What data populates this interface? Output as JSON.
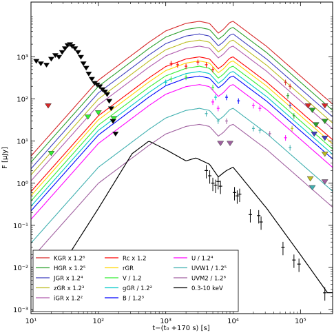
{
  "chart_data": {
    "type": "line",
    "title": "",
    "xlabel": "t−(t₀ +170 s) [s]",
    "ylabel": "F [μJy]",
    "xscale": "log",
    "yscale": "log",
    "xlim": [
      10,
      300000
    ],
    "ylim": [
      0.0008,
      20000
    ],
    "xticks": [
      {
        "v": 10,
        "label": "10¹"
      },
      {
        "v": 100,
        "label": "10²"
      },
      {
        "v": 1000,
        "label": "10³"
      },
      {
        "v": 10000,
        "label": "10⁴"
      },
      {
        "v": 100000,
        "label": "10⁵"
      }
    ],
    "yticks": [
      {
        "v": 0.001,
        "label": "10⁻³"
      },
      {
        "v": 0.01,
        "label": "10⁻²"
      },
      {
        "v": 0.1,
        "label": "10⁻¹"
      },
      {
        "v": 1,
        "label": "10⁰"
      },
      {
        "v": 10,
        "label": "10¹"
      },
      {
        "v": 100,
        "label": "10²"
      },
      {
        "v": 1000,
        "label": "10³"
      }
    ],
    "grid": false,
    "legend_position": "bottom-left",
    "series": [
      {
        "name": "KGR x 1.2⁶",
        "color": "#d62728",
        "peak": 7000
      },
      {
        "name": "HGR x 1.2⁵",
        "color": "#2ca02c",
        "peak": 5000
      },
      {
        "name": "JGR x 1.2⁴",
        "color": "#3f3fbf",
        "peak": 3500
      },
      {
        "name": "zGR x 1.2³",
        "color": "#bcbd22",
        "peak": 2500
      },
      {
        "name": "iGR x 1.2²",
        "color": "#b05cae",
        "peak": 1800
      },
      {
        "name": "Rc x 1.2",
        "color": "#ff0000",
        "peak": 1000
      },
      {
        "name": "rGR",
        "color": "#ffd700",
        "peak": 800
      },
      {
        "name": "V / 1.2",
        "color": "#33ee33",
        "peak": 600
      },
      {
        "name": "gGR / 1.2²",
        "color": "#00c8c8",
        "peak": 450
      },
      {
        "name": "B / 1.2³",
        "color": "#0000ff",
        "peak": 350
      },
      {
        "name": "U / 1.2⁴",
        "color": "#ff00ff",
        "peak": 220
      },
      {
        "name": "UVW1 / 1.2⁵",
        "color": "#40b0b0",
        "peak": 60
      },
      {
        "name": "UVM2 / 1.2⁶",
        "color": "#a060a0",
        "peak": 25
      },
      {
        "name": "0.3-10 keV",
        "color": "#000000",
        "peak": 10
      }
    ],
    "xray_points": [
      {
        "x": 12,
        "y": 800
      },
      {
        "x": 14,
        "y": 700
      },
      {
        "x": 17,
        "y": 650
      },
      {
        "x": 20,
        "y": 900
      },
      {
        "x": 23,
        "y": 1100
      },
      {
        "x": 26,
        "y": 1000
      },
      {
        "x": 29,
        "y": 1300
      },
      {
        "x": 32,
        "y": 1600
      },
      {
        "x": 35,
        "y": 1900
      },
      {
        "x": 38,
        "y": 2000
      },
      {
        "x": 41,
        "y": 1800
      },
      {
        "x": 45,
        "y": 1600
      },
      {
        "x": 50,
        "y": 1300
      },
      {
        "x": 55,
        "y": 1000
      },
      {
        "x": 60,
        "y": 700
      },
      {
        "x": 66,
        "y": 550
      },
      {
        "x": 72,
        "y": 400
      },
      {
        "x": 80,
        "y": 300
      },
      {
        "x": 88,
        "y": 240
      },
      {
        "x": 96,
        "y": 220
      },
      {
        "x": 105,
        "y": 200
      },
      {
        "x": 115,
        "y": 170
      },
      {
        "x": 125,
        "y": 150
      },
      {
        "x": 135,
        "y": 130
      },
      {
        "x": 145,
        "y": 90
      },
      {
        "x": 155,
        "y": 60
      },
      {
        "x": 165,
        "y": 30
      },
      {
        "x": 180,
        "y": 15
      },
      {
        "x": 4000,
        "y": 2.0
      },
      {
        "x": 4500,
        "y": 1.5
      },
      {
        "x": 5000,
        "y": 1.0
      },
      {
        "x": 5500,
        "y": 0.9
      },
      {
        "x": 6000,
        "y": 1.1
      },
      {
        "x": 6500,
        "y": 0.85
      },
      {
        "x": 10500,
        "y": 0.6
      },
      {
        "x": 11500,
        "y": 0.5
      },
      {
        "x": 12500,
        "y": 0.55
      },
      {
        "x": 18000,
        "y": 0.18
      },
      {
        "x": 24000,
        "y": 0.17
      },
      {
        "x": 26000,
        "y": 0.12
      },
      {
        "x": 55000,
        "y": 0.03
      },
      {
        "x": 80000,
        "y": 0.015
      },
      {
        "x": 95000,
        "y": 0.012
      },
      {
        "x": 230000,
        "y": 0.0025
      }
    ],
    "optical_points": [
      {
        "x": 1200,
        "y": 700,
        "c": "#ff0000"
      },
      {
        "x": 1500,
        "y": 650,
        "c": "#ff0000"
      },
      {
        "x": 2000,
        "y": 600,
        "c": "#ff0000"
      },
      {
        "x": 3000,
        "y": 750,
        "c": "#ff0000"
      },
      {
        "x": 4000,
        "y": 650,
        "c": "#ff0000"
      },
      {
        "x": 5000,
        "y": 500,
        "c": "#ff0000"
      },
      {
        "x": 1200,
        "y": 300,
        "c": "#33ee33"
      },
      {
        "x": 2000,
        "y": 330,
        "c": "#33ee33"
      },
      {
        "x": 5000,
        "y": 190,
        "c": "#33ee33"
      },
      {
        "x": 1000,
        "y": 250,
        "c": "#00c8c8"
      },
      {
        "x": 5500,
        "y": 110,
        "c": "#00c8c8"
      },
      {
        "x": 5000,
        "y": 85,
        "c": "#ff00ff"
      },
      {
        "x": 6000,
        "y": 60,
        "c": "#ff00ff"
      },
      {
        "x": 4000,
        "y": 45,
        "c": "#40b0b0"
      },
      {
        "x": 6000,
        "y": 30,
        "c": "#40b0b0"
      },
      {
        "x": 8000,
        "y": 110,
        "c": "#0000ff"
      },
      {
        "x": 12000,
        "y": 90,
        "c": "#0000ff"
      },
      {
        "x": 20000,
        "y": 70,
        "c": "#ff00ff"
      },
      {
        "x": 25000,
        "y": 60,
        "c": "#ff00ff"
      },
      {
        "x": 20000,
        "y": 20,
        "c": "#40b0b0"
      },
      {
        "x": 25000,
        "y": 18,
        "c": "#40b0b0"
      },
      {
        "x": 60000,
        "y": 250,
        "c": "#d62728"
      },
      {
        "x": 70000,
        "y": 200,
        "c": "#d62728"
      },
      {
        "x": 65000,
        "y": 120,
        "c": "#2ca02c"
      },
      {
        "x": 80000,
        "y": 40,
        "c": "#2ca02c"
      },
      {
        "x": 70000,
        "y": 70,
        "c": "#3f3fbf"
      },
      {
        "x": 75000,
        "y": 20,
        "c": "#bcbd22"
      },
      {
        "x": 60000,
        "y": 12,
        "c": "#ff00ff"
      },
      {
        "x": 70000,
        "y": 7,
        "c": "#40b0b0"
      },
      {
        "x": 8000,
        "y": 30,
        "c": "#a060a0"
      },
      {
        "x": 35000,
        "y": 15,
        "c": "#a060a0"
      }
    ],
    "upper_limits": [
      {
        "x": 18,
        "y": 70,
        "c": "#d62728"
      },
      {
        "x": 20,
        "y": 5.2,
        "c": "#33ee33"
      },
      {
        "x": 70,
        "y": 38,
        "c": "#33ee33"
      },
      {
        "x": 100,
        "y": 48,
        "c": "#33ee33"
      },
      {
        "x": 170,
        "y": 35,
        "c": "#33ee33"
      },
      {
        "x": 6500,
        "y": 9,
        "c": "#a060a0"
      },
      {
        "x": 9000,
        "y": 9,
        "c": "#a060a0"
      },
      {
        "x": 130000,
        "y": 70,
        "c": "#d62728"
      },
      {
        "x": 150000,
        "y": 55,
        "c": "#2ca02c"
      },
      {
        "x": 170000,
        "y": 25,
        "c": "#2ca02c"
      },
      {
        "x": 160000,
        "y": 15,
        "c": "#3f3fbf"
      },
      {
        "x": 230000,
        "y": 70,
        "c": "#d62728"
      },
      {
        "x": 230000,
        "y": 30,
        "c": "#2ca02c"
      },
      {
        "x": 230000,
        "y": 12,
        "c": "#3f3fbf"
      },
      {
        "x": 230000,
        "y": 5,
        "c": "#bcbd22"
      },
      {
        "x": 140000,
        "y": 1.3,
        "c": "#bcbd22"
      },
      {
        "x": 150000,
        "y": 0.8,
        "c": "#40b0b0"
      },
      {
        "x": 230000,
        "y": 1.1,
        "c": "#a060a0"
      }
    ]
  }
}
